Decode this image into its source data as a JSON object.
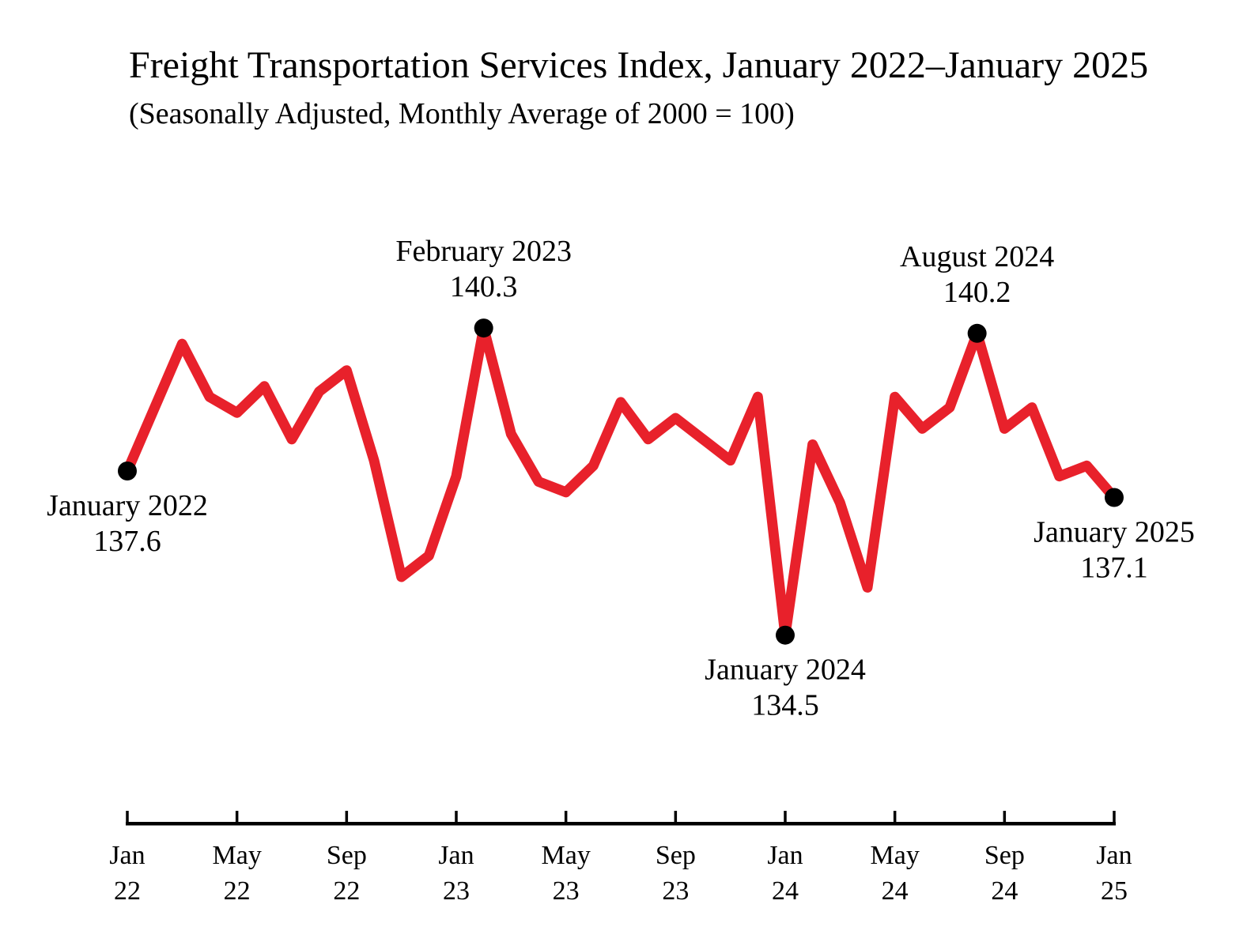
{
  "chart_data": {
    "type": "line",
    "title": "Freight Transportation Services Index, January 2022–January 2025",
    "subtitle": "(Seasonally Adjusted, Monthly Average of 2000 = 100)",
    "xlabel": "",
    "ylabel": "",
    "grid": false,
    "legend": false,
    "ylim": [
      134,
      141
    ],
    "line_color": "#E8212B",
    "marker_color": "#000000",
    "axis_color": "#000000",
    "x": [
      "Jan 2022",
      "Feb 2022",
      "Mar 2022",
      "Apr 2022",
      "May 2022",
      "Jun 2022",
      "Jul 2022",
      "Aug 2022",
      "Sep 2022",
      "Oct 2022",
      "Nov 2022",
      "Dec 2022",
      "Jan 2023",
      "Feb 2023",
      "Mar 2023",
      "Apr 2023",
      "May 2023",
      "Jun 2023",
      "Jul 2023",
      "Aug 2023",
      "Sep 2023",
      "Oct 2023",
      "Nov 2023",
      "Dec 2023",
      "Jan 2024",
      "Feb 2024",
      "Mar 2024",
      "Apr 2024",
      "May 2024",
      "Jun 2024",
      "Jul 2024",
      "Aug 2024",
      "Sep 2024",
      "Oct 2024",
      "Nov 2024",
      "Dec 2024",
      "Jan 2025"
    ],
    "values": [
      137.6,
      138.8,
      140.0,
      139.0,
      138.7,
      139.2,
      138.2,
      139.1,
      139.5,
      137.8,
      135.6,
      136.0,
      137.5,
      140.3,
      138.3,
      137.4,
      137.2,
      137.7,
      138.9,
      138.2,
      138.6,
      138.2,
      137.8,
      139.0,
      134.5,
      138.1,
      137.0,
      135.4,
      139.0,
      138.4,
      138.8,
      140.2,
      138.4,
      138.8,
      137.5,
      137.7,
      137.1
    ],
    "x_ticks": [
      {
        "index": 0,
        "line1": "Jan",
        "line2": "22"
      },
      {
        "index": 4,
        "line1": "May",
        "line2": "22"
      },
      {
        "index": 8,
        "line1": "Sep",
        "line2": "22"
      },
      {
        "index": 12,
        "line1": "Jan",
        "line2": "23"
      },
      {
        "index": 16,
        "line1": "May",
        "line2": "23"
      },
      {
        "index": 20,
        "line1": "Sep",
        "line2": "23"
      },
      {
        "index": 24,
        "line1": "Jan",
        "line2": "24"
      },
      {
        "index": 28,
        "line1": "May",
        "line2": "24"
      },
      {
        "index": 32,
        "line1": "Sep",
        "line2": "24"
      },
      {
        "index": 36,
        "line1": "Jan",
        "line2": "25"
      }
    ],
    "annotations": [
      {
        "index": 0,
        "line1": "January 2022",
        "line2": "137.6",
        "value": 137.6,
        "placement": "below"
      },
      {
        "index": 13,
        "line1": "February 2023",
        "line2": "140.3",
        "value": 140.3,
        "placement": "above"
      },
      {
        "index": 24,
        "line1": "January 2024",
        "line2": "134.5",
        "value": 134.5,
        "placement": "below"
      },
      {
        "index": 31,
        "line1": "August 2024",
        "line2": "140.2",
        "value": 140.2,
        "placement": "above"
      },
      {
        "index": 36,
        "line1": "January 2025",
        "line2": "137.1",
        "value": 137.1,
        "placement": "below"
      }
    ]
  }
}
